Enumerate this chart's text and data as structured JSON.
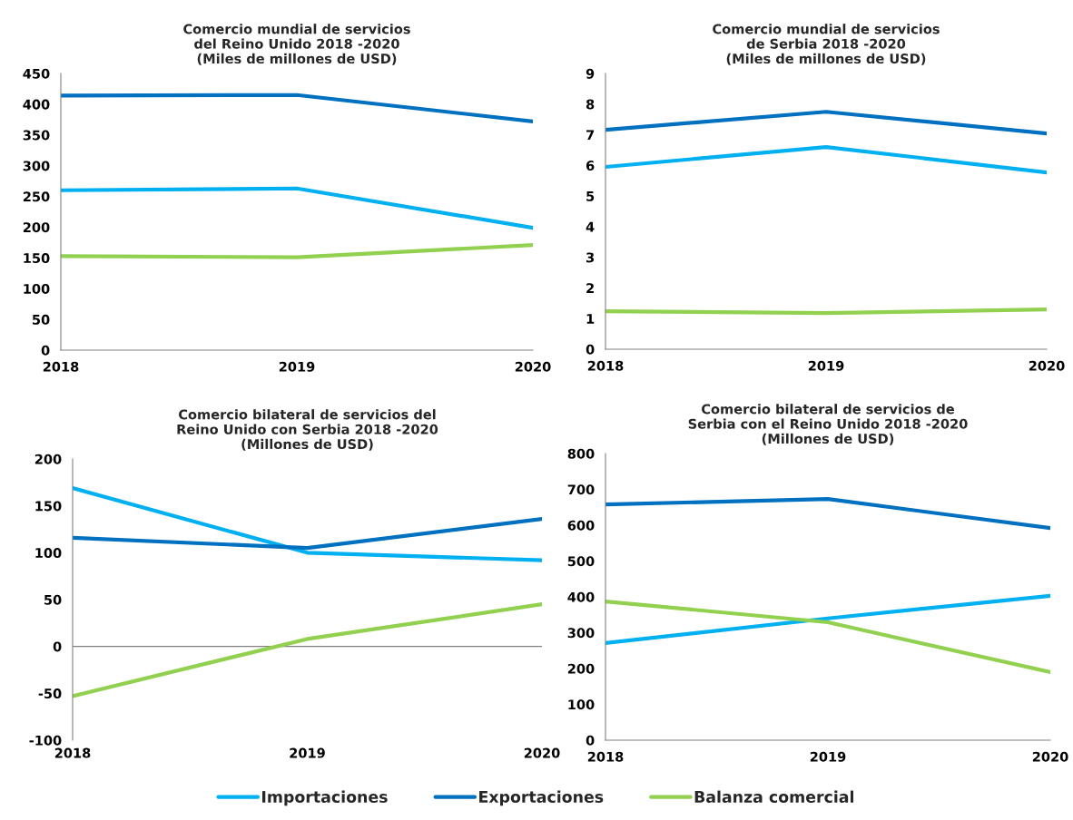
{
  "chart_data": [
    {
      "type": "line",
      "title": "Comercio mundial de servicios\ndel Reino Unido 2018 -2020\n(Miles de millones de USD)",
      "x": [
        2018,
        2019,
        2020
      ],
      "xlim": [
        2018,
        2020
      ],
      "xticks": [
        2018,
        2019,
        2020
      ],
      "ylim": [
        0,
        450
      ],
      "yticks": [
        0,
        50,
        100,
        150,
        200,
        250,
        300,
        350,
        400,
        450
      ],
      "grid": false,
      "legend": "bottom",
      "marker": "none",
      "line_style": "solid",
      "series": [
        {
          "name": "Importaciones",
          "color": "#00b0f0",
          "values": [
            260,
            263,
            199
          ]
        },
        {
          "name": "Exportaciones",
          "color": "#0070c0",
          "values": [
            414,
            415,
            372
          ]
        },
        {
          "name": "Balanza comercial",
          "color": "#92d050",
          "values": [
            153,
            151,
            171
          ]
        }
      ]
    },
    {
      "type": "line",
      "title": "Comercio mundial de servicios\nde Serbia 2018 -2020\n(Miles de millones de USD)",
      "x": [
        2018,
        2019,
        2020
      ],
      "xlim": [
        2018,
        2020
      ],
      "xticks": [
        2018,
        2019,
        2020
      ],
      "ylim": [
        0,
        9
      ],
      "yticks": [
        0,
        1,
        2,
        3,
        4,
        5,
        6,
        7,
        8,
        9
      ],
      "grid": false,
      "legend": "bottom",
      "marker": "none",
      "line_style": "solid",
      "series": [
        {
          "name": "Importaciones",
          "color": "#00b0f0",
          "values": [
            5.95,
            6.6,
            5.77
          ]
        },
        {
          "name": "Exportaciones",
          "color": "#0070c0",
          "values": [
            7.16,
            7.75,
            7.04
          ]
        },
        {
          "name": "Balanza comercial",
          "color": "#92d050",
          "values": [
            1.24,
            1.18,
            1.3
          ]
        }
      ]
    },
    {
      "type": "line",
      "title": "Comercio bilateral de servicios del\nReino Unido con Serbia 2018 -2020\n(Millones de USD)",
      "x": [
        2018,
        2019,
        2020
      ],
      "xlim": [
        2018,
        2020
      ],
      "xticks": [
        2018,
        2019,
        2020
      ],
      "ylim": [
        -100,
        200
      ],
      "yticks": [
        -100,
        -50,
        0,
        50,
        100,
        150,
        200
      ],
      "ref_lines": [
        {
          "axis": "y",
          "value": 0,
          "color": "#808080"
        }
      ],
      "grid": false,
      "legend": "bottom",
      "marker": "none",
      "line_style": "solid",
      "series": [
        {
          "name": "Importaciones",
          "color": "#00b0f0",
          "values": [
            169,
            100,
            92
          ]
        },
        {
          "name": "Exportaciones",
          "color": "#0070c0",
          "values": [
            116,
            105,
            136
          ]
        },
        {
          "name": "Balanza comercial",
          "color": "#92d050",
          "values": [
            -53,
            8,
            45
          ]
        }
      ]
    },
    {
      "type": "line",
      "title": "Comercio bilateral de servicios de\nSerbia con el Reino Unido 2018 -2020\n(Millones de USD)",
      "x": [
        2018,
        2019,
        2020
      ],
      "xlim": [
        2018,
        2020
      ],
      "xticks": [
        2018,
        2019,
        2020
      ],
      "ylim": [
        0,
        800
      ],
      "yticks": [
        0,
        100,
        200,
        300,
        400,
        500,
        600,
        700,
        800
      ],
      "grid": false,
      "legend": "bottom",
      "marker": "none",
      "line_style": "solid",
      "series": [
        {
          "name": "Importaciones",
          "color": "#00b0f0",
          "values": [
            271,
            340,
            403
          ]
        },
        {
          "name": "Exportaciones",
          "color": "#0070c0",
          "values": [
            658,
            673,
            592
          ]
        },
        {
          "name": "Balanza comercial",
          "color": "#92d050",
          "values": [
            387,
            329,
            190
          ]
        }
      ]
    }
  ]
}
